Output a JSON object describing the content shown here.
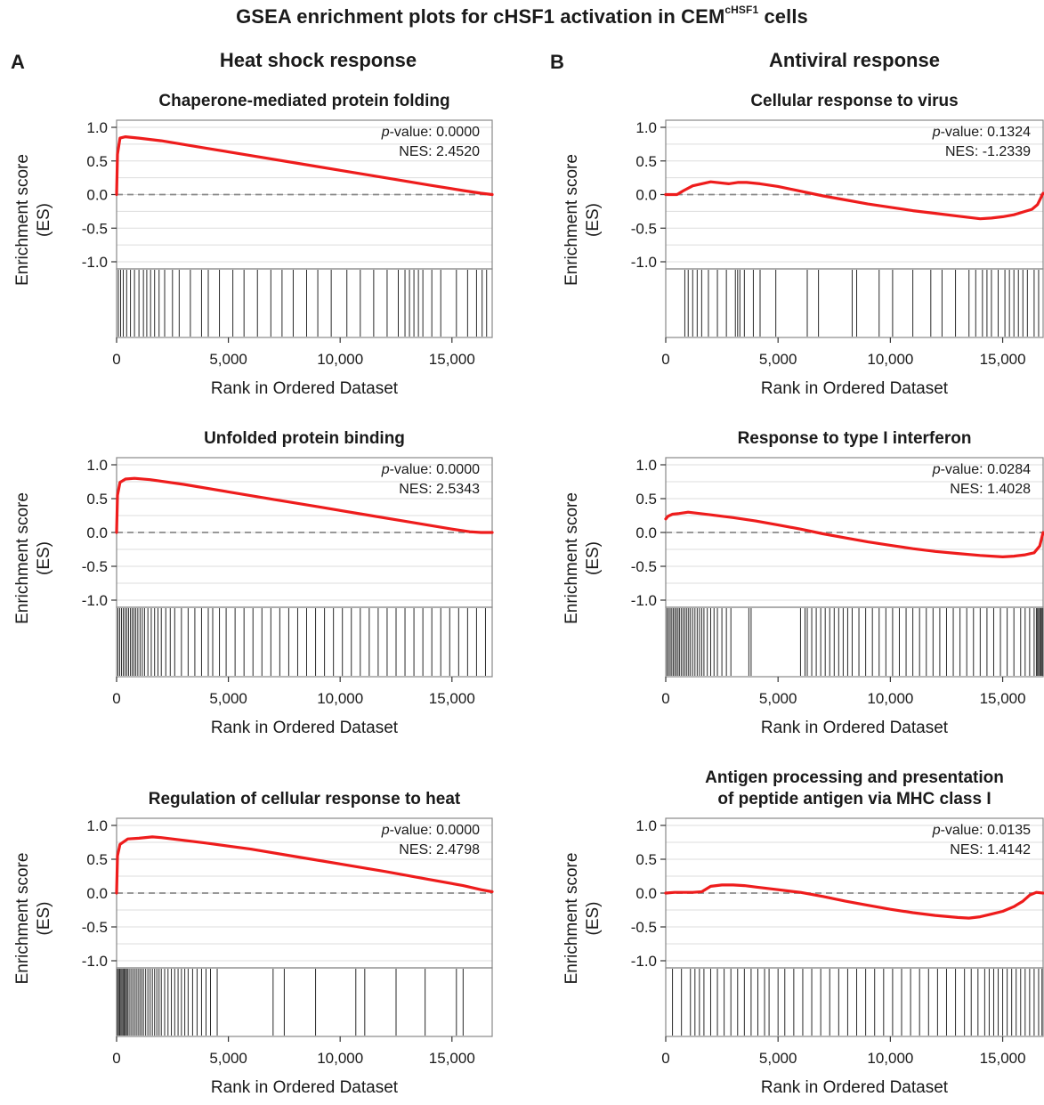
{
  "figure": {
    "title": "GSEA enrichment plots for cHSF1 activation in CEM",
    "title_superscript": "cHSF1",
    "title_suffix": " cells",
    "panels": [
      {
        "letter": "A",
        "heading": "Heat shock response"
      },
      {
        "letter": "B",
        "heading": "Antiviral response"
      }
    ]
  },
  "colors": {
    "es_curve": "#ee1c1c",
    "zero_line": "#8a8a8a",
    "hit_lines": "#2a2a2a",
    "grid": "#dddddd",
    "frame": "#888888"
  },
  "chart_data": [
    {
      "type": "line",
      "panel": "A",
      "title_lines": [
        "Chaperone-mediated protein folding"
      ],
      "ylabel": [
        "Enrichment score",
        "(ES)"
      ],
      "xlabel": "Rank in Ordered Dataset",
      "xlim": [
        0,
        16800
      ],
      "ylim": [
        -1.0,
        1.0
      ],
      "x_ticks": [
        0,
        5000,
        10000,
        15000
      ],
      "x_tick_labels": [
        "0",
        "5,000",
        "10,000",
        "15,000"
      ],
      "y_ticks": [
        1.0,
        0.5,
        0.0,
        -0.5,
        -1.0
      ],
      "y_tick_labels": [
        "1.0",
        "0.5",
        "0.0",
        "-0.5",
        "-1.0"
      ],
      "grid": true,
      "pvalue": "0.0000",
      "nes": "2.4520",
      "es_curve": {
        "x": [
          0,
          40,
          150,
          400,
          1000,
          2000,
          4000,
          6000,
          8000,
          10000,
          12000,
          14000,
          15500,
          16300,
          16800
        ],
        "y": [
          0,
          0.6,
          0.84,
          0.86,
          0.84,
          0.8,
          0.69,
          0.58,
          0.47,
          0.36,
          0.25,
          0.14,
          0.06,
          0.02,
          0.0
        ]
      },
      "hits": [
        80,
        180,
        300,
        450,
        620,
        800,
        1000,
        1200,
        1350,
        1520,
        1700,
        1900,
        2150,
        2500,
        2800,
        3300,
        3800,
        4100,
        4600,
        5200,
        5700,
        6300,
        6900,
        7400,
        7900,
        8500,
        9000,
        9600,
        10300,
        10900,
        11500,
        12100,
        12600,
        12900,
        13100,
        13300,
        13500,
        13700,
        14100,
        14500,
        15200,
        15700,
        16100,
        16350,
        16550
      ]
    },
    {
      "type": "line",
      "panel": "A",
      "title_lines": [
        "Unfolded protein binding"
      ],
      "ylabel": [
        "Enrichment score",
        "(ES)"
      ],
      "xlabel": "Rank in Ordered Dataset",
      "xlim": [
        0,
        16800
      ],
      "ylim": [
        -1.0,
        1.0
      ],
      "x_ticks": [
        0,
        5000,
        10000,
        15000
      ],
      "x_tick_labels": [
        "0",
        "5,000",
        "10,000",
        "15,000"
      ],
      "y_ticks": [
        1.0,
        0.5,
        0.0,
        -0.5,
        -1.0
      ],
      "y_tick_labels": [
        "1.0",
        "0.5",
        "0.0",
        "-0.5",
        "-1.0"
      ],
      "grid": true,
      "pvalue": "0.0000",
      "nes": "2.5343",
      "es_curve": {
        "x": [
          0,
          40,
          150,
          400,
          800,
          1500,
          3000,
          5000,
          7000,
          9000,
          11000,
          13000,
          15000,
          15800,
          16300,
          16800
        ],
        "y": [
          0,
          0.55,
          0.74,
          0.79,
          0.8,
          0.78,
          0.71,
          0.6,
          0.49,
          0.38,
          0.27,
          0.16,
          0.05,
          0.01,
          0.0,
          0.0
        ]
      },
      "hits": [
        60,
        140,
        220,
        300,
        380,
        460,
        540,
        620,
        700,
        780,
        860,
        950,
        1050,
        1150,
        1250,
        1400,
        1550,
        1700,
        1850,
        2000,
        2200,
        2400,
        2600,
        2900,
        3200,
        3500,
        3800,
        4100,
        4300,
        4600,
        4900,
        5300,
        5700,
        6100,
        6500,
        6900,
        7300,
        7700,
        8100,
        8500,
        8900,
        9300,
        9700,
        10100,
        10500,
        10900,
        11300,
        11700,
        12100,
        12500,
        12900,
        13300,
        13700,
        14100,
        14500,
        14900,
        15300,
        15700,
        16100,
        16500
      ]
    },
    {
      "type": "line",
      "panel": "A",
      "title_lines": [
        "Regulation of cellular response to heat"
      ],
      "ylabel": [
        "Enrichment score",
        "(ES)"
      ],
      "xlabel": "Rank in Ordered Dataset",
      "xlim": [
        0,
        16800
      ],
      "ylim": [
        -1.0,
        1.0
      ],
      "x_ticks": [
        0,
        5000,
        10000,
        15000
      ],
      "x_tick_labels": [
        "0",
        "5,000",
        "10,000",
        "15,000"
      ],
      "y_ticks": [
        1.0,
        0.5,
        0.0,
        -0.5,
        -1.0
      ],
      "y_tick_labels": [
        "1.0",
        "0.5",
        "0.0",
        "-0.5",
        "-1.0"
      ],
      "grid": true,
      "pvalue": "0.0000",
      "nes": "2.4798",
      "es_curve": {
        "x": [
          0,
          40,
          150,
          500,
          1000,
          1600,
          2000,
          4000,
          6000,
          8000,
          10000,
          12000,
          14000,
          15500,
          16300,
          16800
        ],
        "y": [
          0,
          0.55,
          0.72,
          0.8,
          0.81,
          0.83,
          0.82,
          0.74,
          0.65,
          0.54,
          0.43,
          0.32,
          0.2,
          0.11,
          0.05,
          0.02
        ]
      },
      "hits": [
        40,
        90,
        140,
        190,
        240,
        290,
        340,
        390,
        440,
        490,
        560,
        640,
        720,
        800,
        880,
        960,
        1040,
        1120,
        1200,
        1300,
        1400,
        1500,
        1600,
        1700,
        1800,
        1900,
        2000,
        2150,
        2300,
        2450,
        2600,
        2750,
        2900,
        3050,
        3200,
        3400,
        3600,
        3800,
        4000,
        4200,
        4500,
        7000,
        7500,
        8900,
        10700,
        11100,
        12500,
        13800,
        15200,
        15500
      ]
    },
    {
      "type": "line",
      "panel": "B",
      "title_lines": [
        "Cellular response to virus"
      ],
      "ylabel": [
        "Enrichment score",
        "(ES)"
      ],
      "xlabel": "Rank in Ordered Dataset",
      "xlim": [
        0,
        16800
      ],
      "ylim": [
        -1.0,
        1.0
      ],
      "x_ticks": [
        0,
        5000,
        10000,
        15000
      ],
      "x_tick_labels": [
        "0",
        "5,000",
        "10,000",
        "15,000"
      ],
      "y_ticks": [
        1.0,
        0.5,
        0.0,
        -0.5,
        -1.0
      ],
      "y_tick_labels": [
        "1.0",
        "0.5",
        "0.0",
        "-0.5",
        "-1.0"
      ],
      "grid": true,
      "pvalue": "0.1324",
      "nes": "-1.2339",
      "es_curve": {
        "x": [
          0,
          500,
          800,
          1200,
          2000,
          2800,
          3200,
          3600,
          4200,
          5000,
          6000,
          7000,
          8000,
          9000,
          10000,
          11000,
          12000,
          13000,
          14000,
          14500,
          15000,
          15500,
          16000,
          16300,
          16550,
          16800
        ],
        "y": [
          0,
          0.0,
          0.06,
          0.13,
          0.19,
          0.16,
          0.18,
          0.18,
          0.16,
          0.12,
          0.05,
          -0.02,
          -0.08,
          -0.14,
          -0.19,
          -0.24,
          -0.28,
          -0.32,
          -0.36,
          -0.35,
          -0.33,
          -0.3,
          -0.25,
          -0.22,
          -0.15,
          0.02
        ]
      },
      "hits": [
        850,
        1000,
        1200,
        1400,
        1600,
        1900,
        2300,
        2700,
        3100,
        3200,
        3300,
        3500,
        3900,
        4200,
        4900,
        6300,
        6800,
        8300,
        8500,
        9500,
        10100,
        11000,
        11800,
        12300,
        12900,
        13500,
        13800,
        14100,
        14300,
        14500,
        14800,
        15100,
        15300,
        15500,
        15700,
        15900,
        16100,
        16400,
        16600
      ]
    },
    {
      "type": "line",
      "panel": "B",
      "title_lines": [
        "Response to type I interferon"
      ],
      "ylabel": [
        "Enrichment score",
        "(ES)"
      ],
      "xlabel": "Rank in Ordered Dataset",
      "xlim": [
        0,
        16800
      ],
      "ylim": [
        -1.0,
        1.0
      ],
      "x_ticks": [
        0,
        5000,
        10000,
        15000
      ],
      "x_tick_labels": [
        "0",
        "5,000",
        "10,000",
        "15,000"
      ],
      "y_ticks": [
        1.0,
        0.5,
        0.0,
        -0.5,
        -1.0
      ],
      "y_tick_labels": [
        "1.0",
        "0.5",
        "0.0",
        "-0.5",
        "-1.0"
      ],
      "grid": true,
      "pvalue": "0.0284",
      "nes": "1.4028",
      "es_curve": {
        "x": [
          0,
          100,
          300,
          600,
          1000,
          1500,
          2000,
          3000,
          4000,
          5000,
          6000,
          7000,
          8000,
          9000,
          10000,
          11000,
          12000,
          13000,
          14000,
          15000,
          15500,
          16000,
          16400,
          16650,
          16800
        ],
        "y": [
          0.2,
          0.24,
          0.27,
          0.28,
          0.3,
          0.28,
          0.26,
          0.22,
          0.17,
          0.11,
          0.05,
          -0.02,
          -0.08,
          -0.14,
          -0.19,
          -0.24,
          -0.28,
          -0.31,
          -0.34,
          -0.36,
          -0.35,
          -0.33,
          -0.3,
          -0.2,
          0.0
        ]
      },
      "hits": [
        60,
        130,
        200,
        270,
        340,
        410,
        480,
        550,
        620,
        700,
        780,
        860,
        940,
        1020,
        1100,
        1200,
        1300,
        1400,
        1500,
        1600,
        1700,
        1850,
        2000,
        2150,
        2300,
        2500,
        2700,
        2900,
        3700,
        3800,
        6000,
        6200,
        6300,
        6500,
        6700,
        6900,
        7100,
        7300,
        7500,
        7700,
        7900,
        8100,
        8300,
        8600,
        8900,
        9200,
        9500,
        9800,
        10100,
        10400,
        10700,
        11000,
        11300,
        11600,
        11900,
        12200,
        12500,
        12800,
        13100,
        13400,
        13700,
        14000,
        14300,
        14600,
        14900,
        15200,
        15500,
        15800,
        16000,
        16200,
        16400,
        16500,
        16550,
        16600,
        16650,
        16700,
        16750,
        16790
      ]
    },
    {
      "type": "line",
      "panel": "B",
      "title_lines": [
        "Antigen processing and presentation",
        "of peptide antigen via MHC class I"
      ],
      "ylabel": [
        "Enrichment score",
        "(ES)"
      ],
      "xlabel": "Rank in Ordered Dataset",
      "xlim": [
        0,
        16800
      ],
      "ylim": [
        -1.0,
        1.0
      ],
      "x_ticks": [
        0,
        5000,
        10000,
        15000
      ],
      "x_tick_labels": [
        "0",
        "5,000",
        "10,000",
        "15,000"
      ],
      "y_ticks": [
        1.0,
        0.5,
        0.0,
        -0.5,
        -1.0
      ],
      "y_tick_labels": [
        "1.0",
        "0.5",
        "0.0",
        "-0.5",
        "-1.0"
      ],
      "grid": true,
      "pvalue": "0.0135",
      "nes": "1.4142",
      "es_curve": {
        "x": [
          0,
          400,
          800,
          1200,
          1600,
          2000,
          2500,
          3000,
          3500,
          4000,
          5000,
          6000,
          7000,
          8000,
          9000,
          10000,
          11000,
          12000,
          13000,
          13500,
          14000,
          14500,
          15000,
          15500,
          15900,
          16200,
          16500,
          16800
        ],
        "y": [
          0,
          0.01,
          0.01,
          0.01,
          0.02,
          0.1,
          0.12,
          0.12,
          0.11,
          0.09,
          0.05,
          0.01,
          -0.05,
          -0.12,
          -0.18,
          -0.24,
          -0.29,
          -0.33,
          -0.36,
          -0.37,
          -0.35,
          -0.31,
          -0.27,
          -0.2,
          -0.12,
          -0.03,
          0.01,
          0.0
        ]
      },
      "hits": [
        300,
        700,
        1100,
        1300,
        1500,
        1700,
        2000,
        2300,
        2600,
        2900,
        3200,
        3500,
        3800,
        4100,
        4400,
        4600,
        5000,
        5300,
        5700,
        6100,
        6500,
        6900,
        7300,
        7700,
        8100,
        8500,
        8900,
        9300,
        9700,
        10100,
        10500,
        10900,
        11300,
        11700,
        12100,
        12500,
        12900,
        13300,
        13600,
        13900,
        14200,
        14400,
        14600,
        14800,
        15000,
        15200,
        15400,
        15600,
        15800,
        16000,
        16200,
        16400,
        16600,
        16750
      ]
    }
  ]
}
